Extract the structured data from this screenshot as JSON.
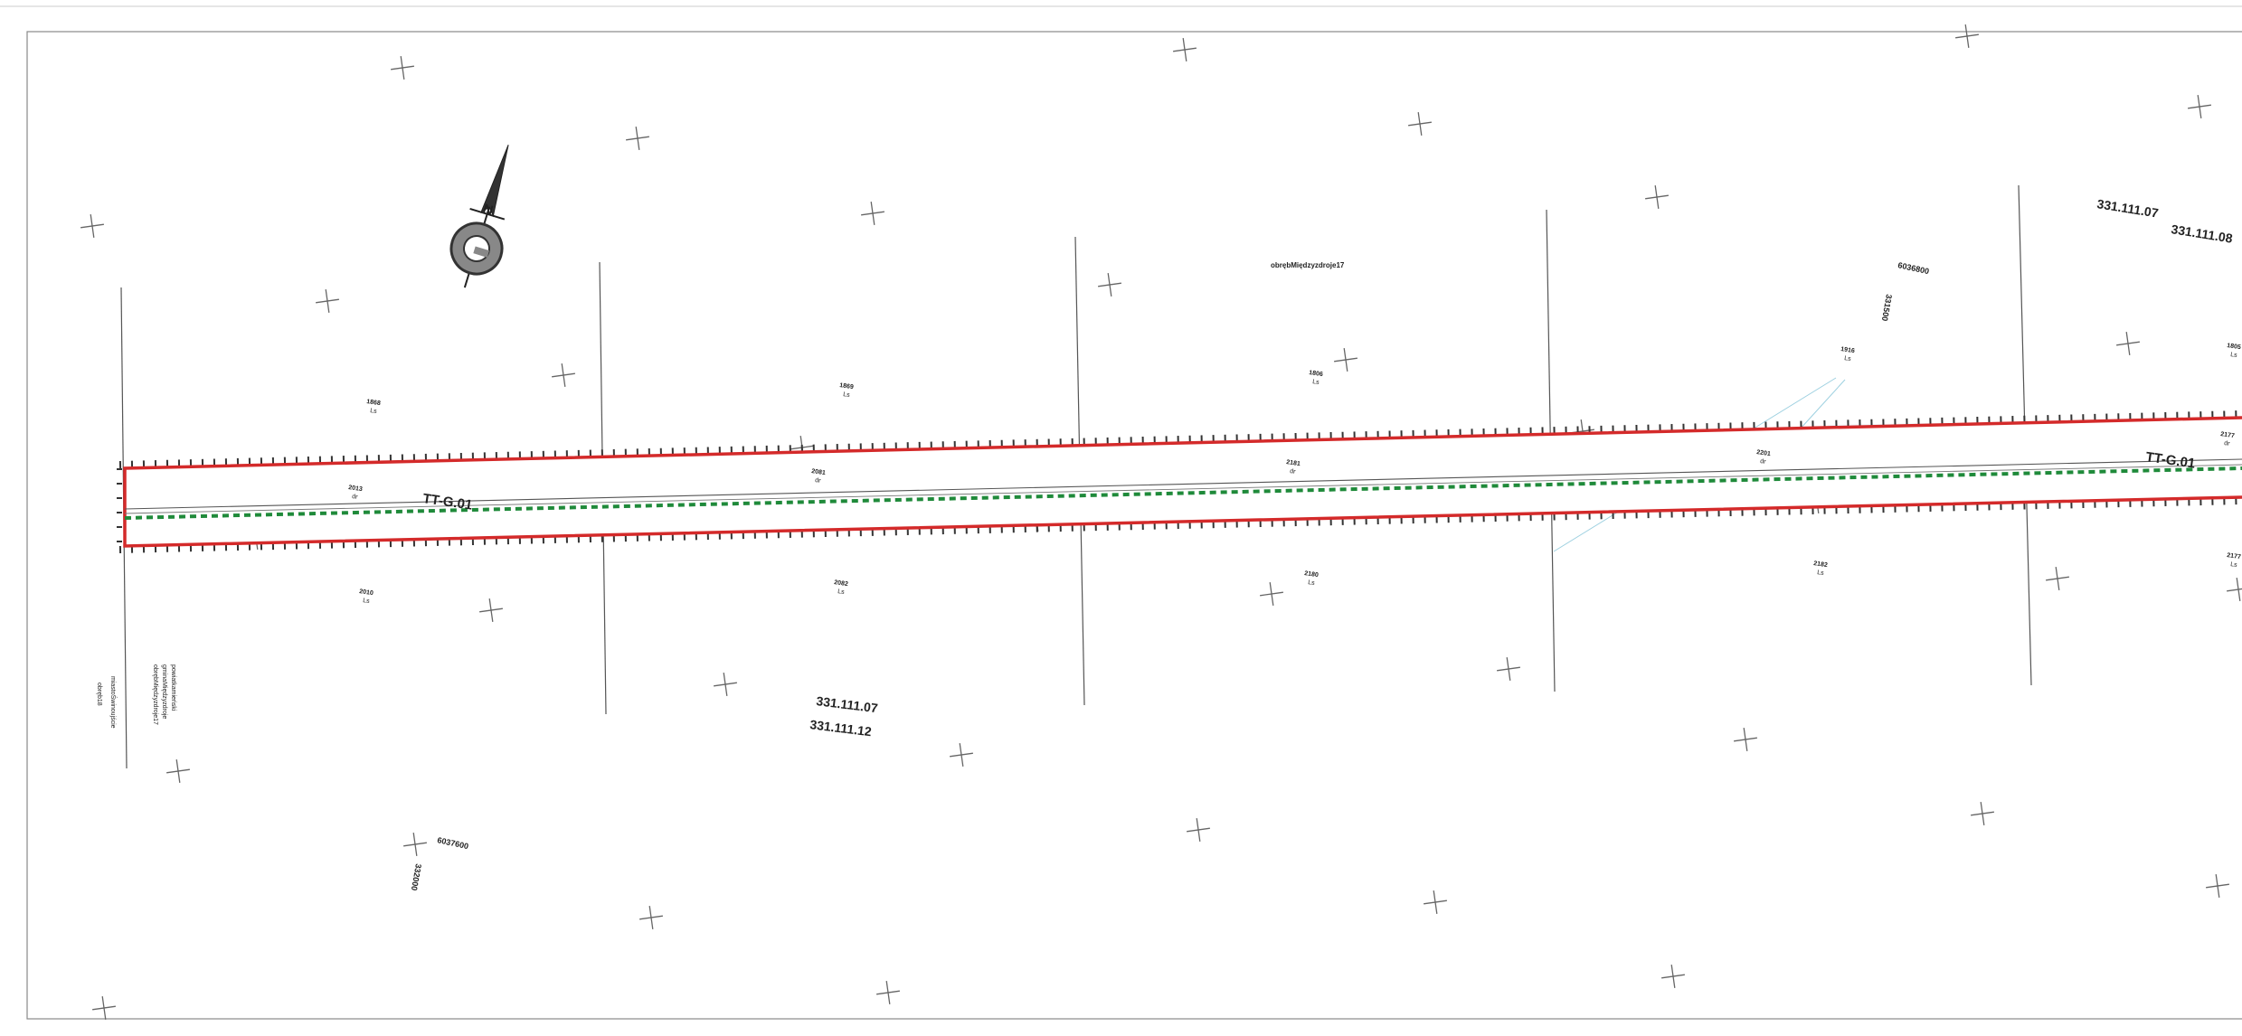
{
  "map": {
    "sheet_numbers": {
      "right_top_a": "331.111.07",
      "right_top_b": "331.111.08",
      "bottom_a": "331.111.07",
      "bottom_b": "331.111.12"
    },
    "precinct_label": "obrębMiędzyzdroje17",
    "road_labels": [
      "TT-G.01",
      "TT-G.01"
    ],
    "grid_coordinates": {
      "top_x": "6036800",
      "top_y": "331500",
      "bottom_x": "6037600",
      "bottom_y": "332000"
    },
    "boundary_labels": [
      "powiatkamieński",
      "gminaMiędzyzdroje",
      "obrębMiędzyzdroje17",
      "miastoŚwinoujście",
      "obręb18"
    ],
    "parcels_top": [
      "1868",
      "1869",
      "1806",
      "1916",
      "1805"
    ],
    "parcels_bottom": [
      "2010",
      "2082",
      "2180",
      "2182",
      "2177"
    ],
    "parcels_inside": [
      "2013",
      "2081",
      "2181",
      "2201",
      "2177"
    ],
    "land_use_code": "Ls",
    "inside_code": "dr",
    "north_arrow": "N",
    "colors": {
      "boundary_red": "#d42a2a",
      "road_green": "#1f8a3a",
      "hatch": "#333333",
      "grid_cross": "#666666"
    }
  }
}
